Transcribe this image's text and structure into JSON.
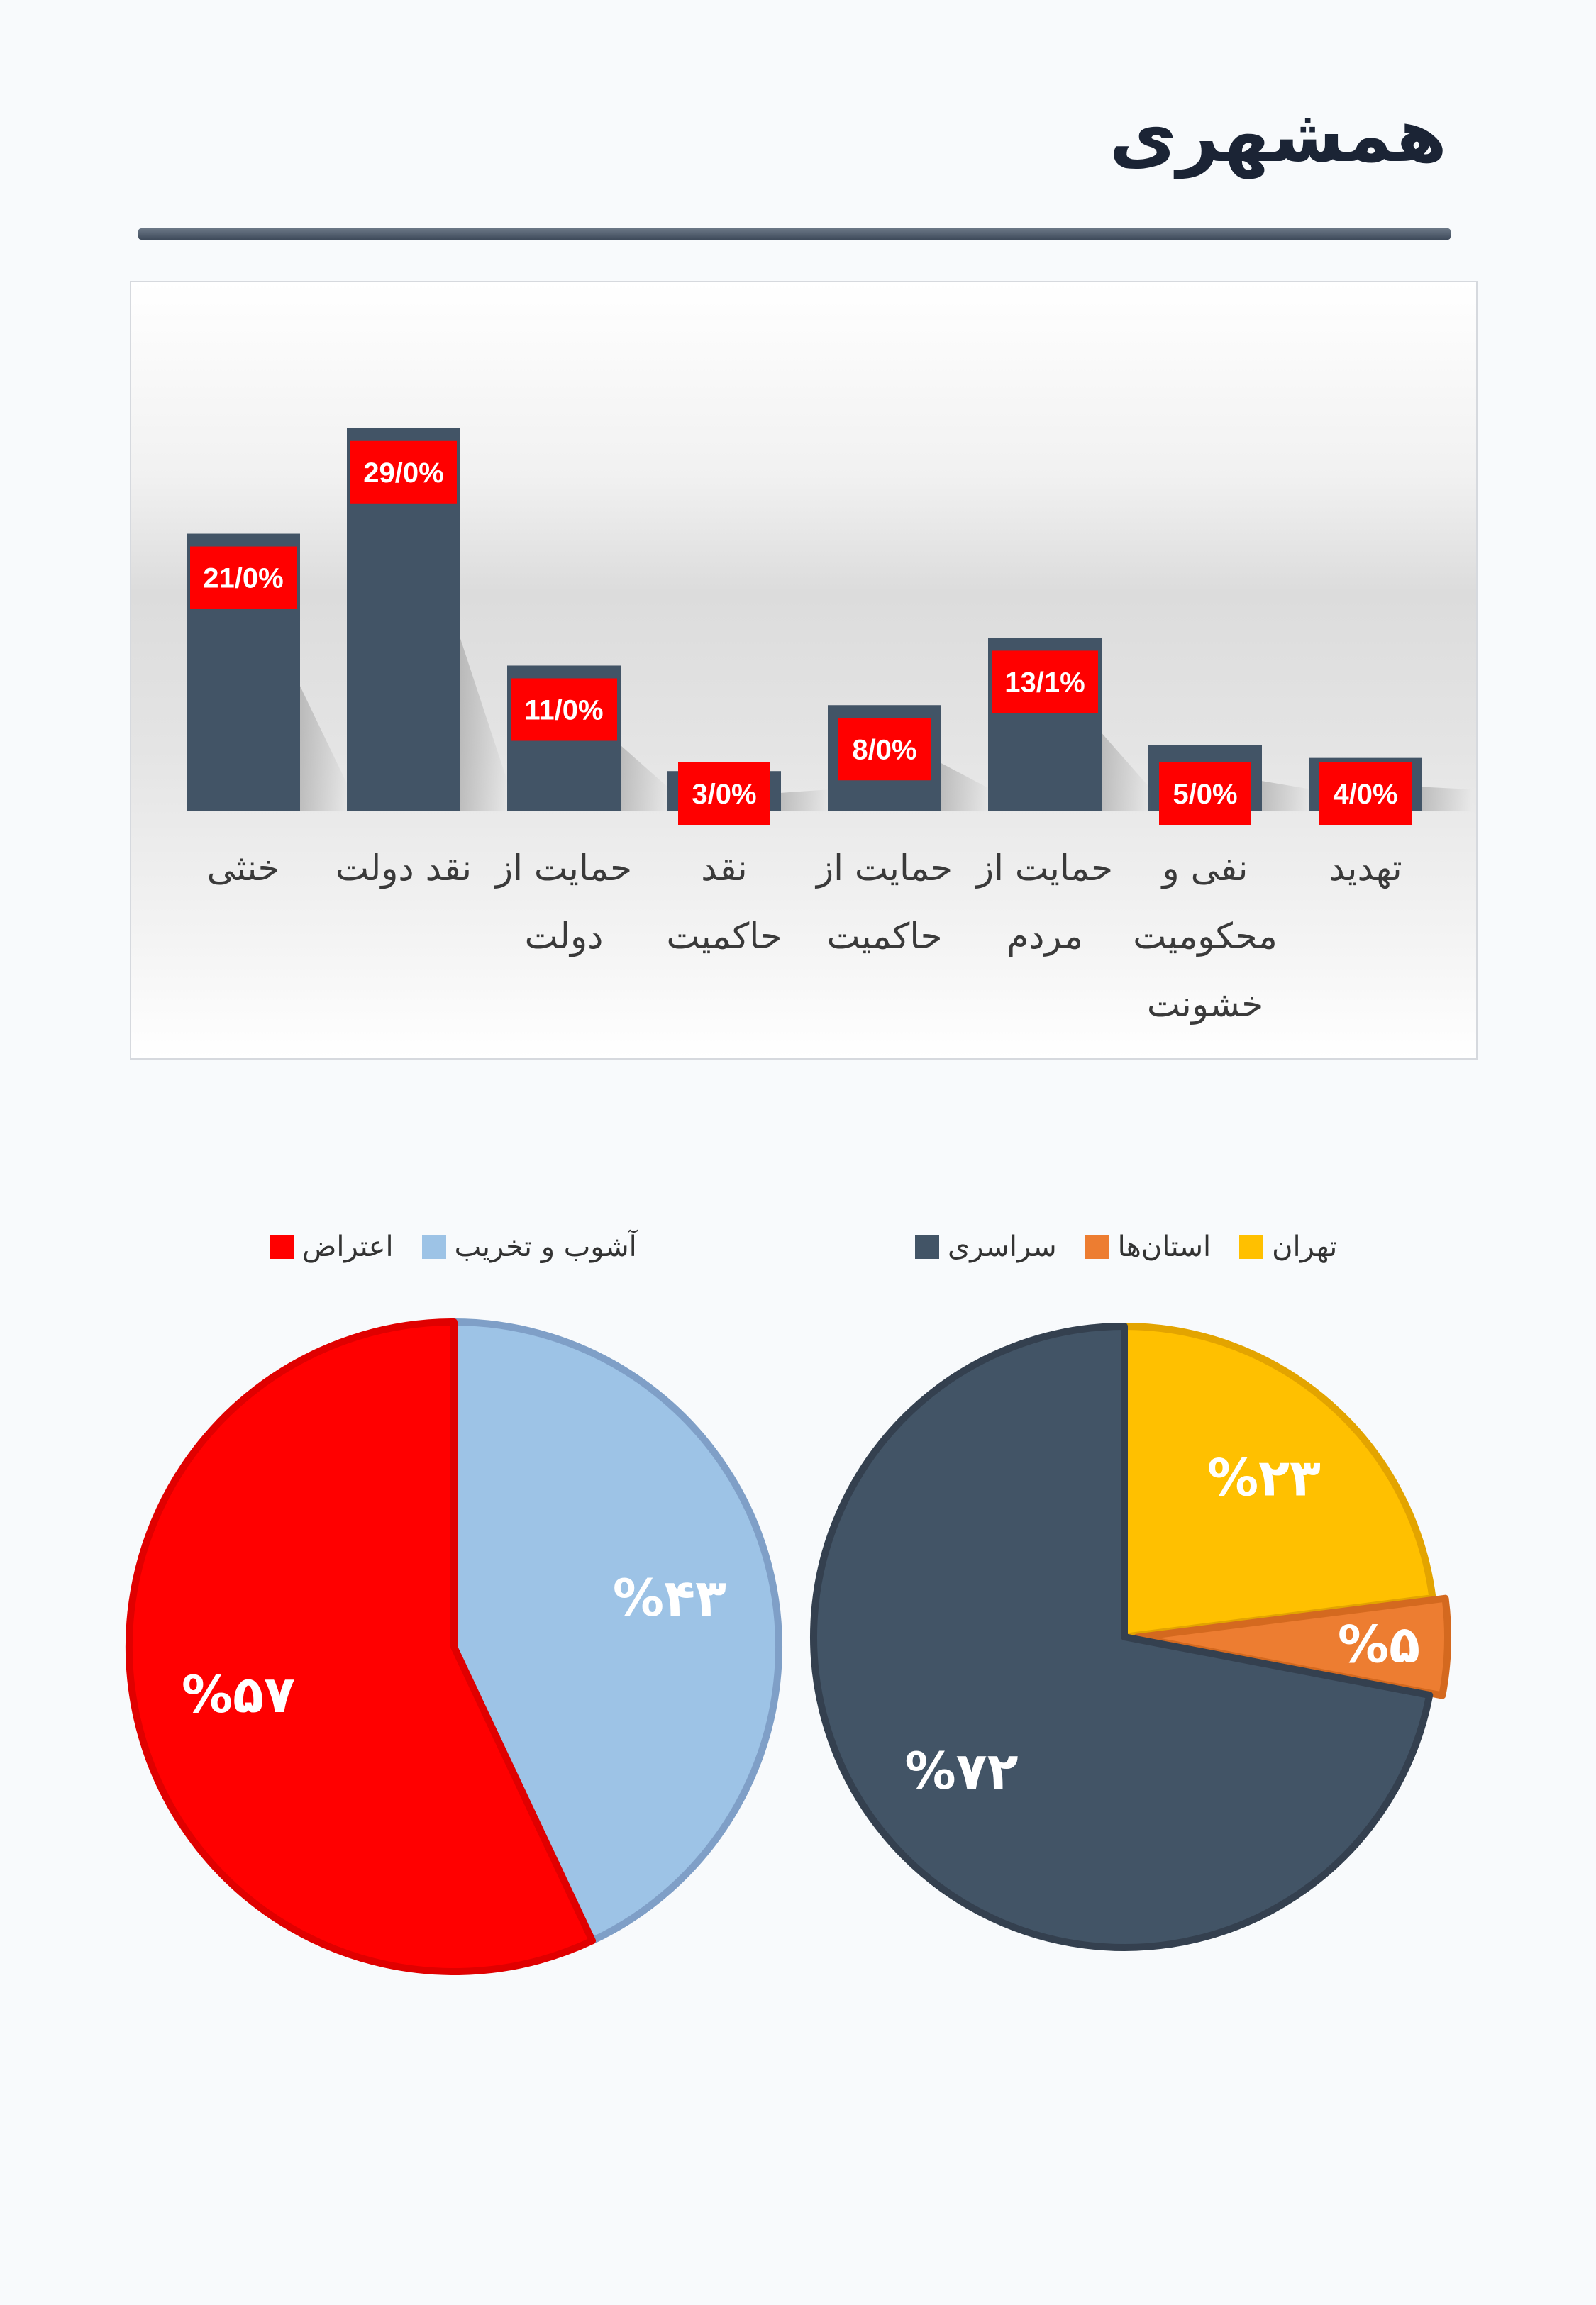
{
  "page_title": "همشهری",
  "chart_data": [
    {
      "type": "bar",
      "categories": [
        "تهدید",
        "نفی و محکومیت خشونت",
        "حمایت از مردم",
        "حمایت از حاکمیت",
        "نقد حاکمیت",
        "حمایت از دولت",
        "نقد دولت",
        "خنثی"
      ],
      "category_lines": [
        [
          "تهدید"
        ],
        [
          "نفی و",
          "محکومیت",
          "خشونت"
        ],
        [
          "حمایت از",
          "مردم"
        ],
        [
          "حمایت از",
          "حاکمیت"
        ],
        [
          "نقد",
          "حاکمیت"
        ],
        [
          "حمایت از",
          "دولت"
        ],
        [
          "نقد دولت"
        ],
        [
          "خنثی"
        ]
      ],
      "values": [
        4.0,
        5.0,
        13.1,
        8.0,
        3.0,
        11.0,
        29.0,
        21.0
      ],
      "data_labels": [
        "4/0%",
        "5/0%",
        "13/1%",
        "8/0%",
        "3/0%",
        "11/0%",
        "29/0%",
        "21/0%"
      ],
      "order": "right-to-left",
      "ylim": [
        0,
        32
      ],
      "grid": false,
      "colors": {
        "bar": "#425466",
        "label_bg": "#ff0000",
        "label_text": "#ffffff"
      }
    },
    {
      "type": "pie",
      "slices": [
        {
          "name": "آشوب و تخریب",
          "value": 43,
          "label": "%۴۳",
          "color": "#9dc3e6",
          "edge": "#7f9fc7"
        },
        {
          "name": "اعتراض",
          "value": 57,
          "label": "%۵۷",
          "color": "#ff0000",
          "edge": "#e00000"
        }
      ],
      "legend": [
        "اعتراض",
        "آشوب و تخریب"
      ],
      "legend_placement": "top"
    },
    {
      "type": "pie",
      "slices": [
        {
          "name": "تهران",
          "value": 23,
          "label": "%۲۳",
          "color": "#ffc000",
          "edge": "#e3a400"
        },
        {
          "name": "استان‌ها",
          "value": 5,
          "label": "%۵",
          "color": "#ed7d31",
          "edge": "#d4691f"
        },
        {
          "name": "سراسری",
          "value": 72,
          "label": "%۷۲",
          "color": "#425466",
          "edge": "#34404f"
        }
      ],
      "legend": [
        "سراسری",
        "استان‌ها",
        "تهران"
      ],
      "legend_placement": "top"
    }
  ]
}
